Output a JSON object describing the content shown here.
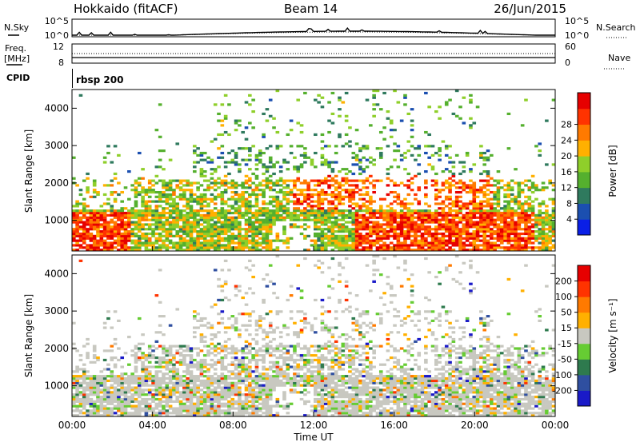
{
  "header": {
    "site": "Hokkaido (fitACF)",
    "beam": "Beam 14",
    "date": "26/Jun/2015"
  },
  "nsky_panel": {
    "left_label": "N.Sky",
    "right_label": "N.Search",
    "left_ticks": [
      "10^5",
      "10^0"
    ],
    "right_ticks": [
      "10^5",
      "10^0"
    ]
  },
  "freq_panel": {
    "left_label_1": "Freq.",
    "left_label_2": "[MHz]",
    "left_ticks": [
      "12",
      "8"
    ],
    "right_label": "Nave",
    "right_ticks": [
      "60",
      "0"
    ]
  },
  "cpid": {
    "label": "CPID",
    "value": "rbsp 200"
  },
  "chart_data": [
    {
      "type": "heatmap",
      "name": "power",
      "ylabel": "Slant Range [km]",
      "xlabel": "",
      "ylim": [
        180,
        4500
      ],
      "x_ticks": [
        "00:00",
        "04:00",
        "08:00",
        "12:00",
        "16:00",
        "20:00",
        "00:00"
      ],
      "y_ticks": [
        "1000",
        "2000",
        "3000",
        "4000"
      ],
      "colorbar": {
        "label": "Power [dB]",
        "ticks": [
          "4",
          "8",
          "12",
          "16",
          "20",
          "24",
          "28"
        ],
        "colors": [
          "#0a1fe6",
          "#1b4fb0",
          "#2f7a5e",
          "#55b02e",
          "#8fcf2a",
          "#ffb000",
          "#ff7a00",
          "#ff3300",
          "#e60000"
        ]
      }
    },
    {
      "type": "heatmap",
      "name": "velocity",
      "ylabel": "Slant Range [km]",
      "xlabel": "Time UT",
      "ylim": [
        180,
        4500
      ],
      "x_ticks": [
        "00:00",
        "04:00",
        "08:00",
        "12:00",
        "16:00",
        "20:00",
        "00:00"
      ],
      "y_ticks": [
        "1000",
        "2000",
        "3000",
        "4000"
      ],
      "colorbar": {
        "label": "Velocity [m s⁻¹]",
        "ticks": [
          "200",
          "100",
          "50",
          "15",
          "-15",
          "-50",
          "-100",
          "-200"
        ],
        "colors": [
          "#1a1ac8",
          "#2f4fa0",
          "#2e7a4e",
          "#66cc33",
          "#c8c8c0",
          "#ffb000",
          "#ff7a00",
          "#ff3300",
          "#e60000"
        ]
      }
    }
  ]
}
